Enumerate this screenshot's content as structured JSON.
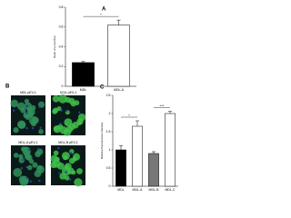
{
  "chart_data": [
    {
      "type": "bar",
      "panel": "A",
      "ylabel": "Ratio of p-Fyn/Fyn",
      "categories": [
        "MDL",
        "MDL-A"
      ],
      "values": [
        0.24,
        0.62
      ],
      "errors": [
        0.01,
        0.05
      ],
      "colors": [
        "#000000",
        "#ffffff"
      ],
      "ylim": [
        0,
        0.8
      ],
      "yticks": [
        0,
        0.2,
        0.4,
        0.6,
        0.8
      ],
      "annotations": [
        "*"
      ]
    },
    {
      "type": "bar",
      "panel": "C",
      "ylabel": "Relative fluorescence intensity",
      "categories": [
        "MDL",
        "MDL-A",
        "MDL-B",
        "MDL-C"
      ],
      "values": [
        1.0,
        1.65,
        0.9,
        2.0
      ],
      "errors": [
        0.12,
        0.15,
        0.05,
        0.06
      ],
      "colors": [
        "#000000",
        "#ffffff",
        "#777777",
        "#ffffff"
      ],
      "ylim": [
        0,
        2.5
      ],
      "yticks": [
        0,
        0.5,
        1,
        1.5,
        2,
        2.5
      ],
      "annotations": [
        "*",
        "***"
      ]
    }
  ],
  "figure": {
    "panel_b": "B",
    "images": [
      "MDL pEV-1",
      "KGIL pEV-1",
      "MDL-A pEV-1",
      "MDL-B pEV-1"
    ]
  }
}
